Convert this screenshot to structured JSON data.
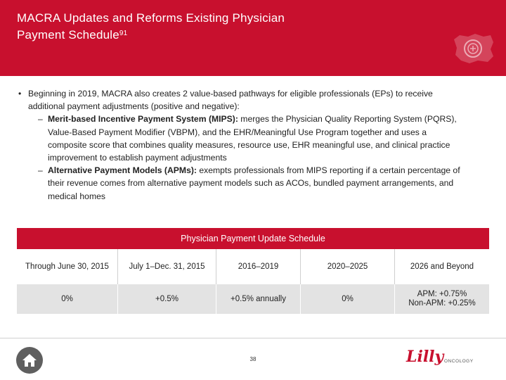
{
  "header": {
    "title_line1": "MACRA Updates and Reforms Existing Physician",
    "title_line2": "Payment Schedule",
    "title_sup": "91",
    "seal_icon": "state-seal-icon",
    "color": "#c8102e"
  },
  "body": {
    "bullet": "Beginning in 2019, MACRA also creates 2 value-based pathways for eligible professionals (EPs) to receive additional payment adjustments (positive and negative):",
    "subs": [
      {
        "term": "Merit-based Incentive Payment System (MIPS):",
        "text": " merges the Physician Quality Reporting System (PQRS), Value-Based Payment Modifier (VBPM), and the EHR/Meaningful Use Program together and uses a composite score that combines quality measures, resource use, EHR meaningful use, and clinical practice improvement to establish payment adjustments"
      },
      {
        "term": "Alternative Payment Models (APMs):",
        "text": " exempts professionals from MIPS reporting if a certain percentage of their revenue comes from alternative payment models such as ACOs, bundled payment arrangements, and medical homes"
      }
    ]
  },
  "table": {
    "title": "Physician Payment Update Schedule",
    "periods": [
      "Through June 30, 2015",
      "July 1–Dec. 31, 2015",
      "2016–2019",
      "2020–2025",
      "2026 and Beyond"
    ],
    "updates": [
      "0%",
      "+0.5%",
      "+0.5% annually",
      "0%",
      "APM: +0.75%",
      "Non-APM: +0.25%"
    ]
  },
  "footer": {
    "page_number": "38",
    "home_icon": "home-icon",
    "logo_text": "Lilly",
    "logo_sub": "ONCOLOGY"
  }
}
